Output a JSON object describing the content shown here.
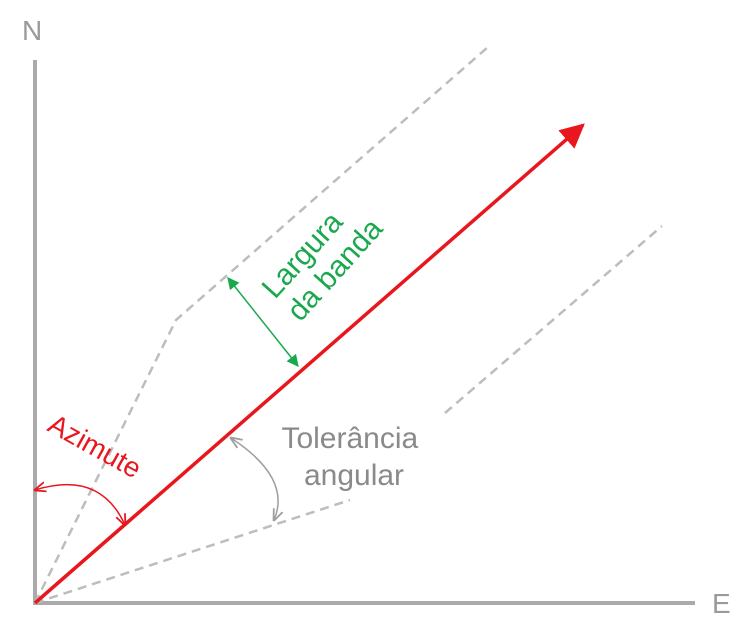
{
  "axes": {
    "north_label": "N",
    "east_label": "E"
  },
  "labels": {
    "band_width_line1": "Largura",
    "band_width_line2": "da banda",
    "angular_tolerance_line1": "Tolerância",
    "angular_tolerance_line2": "angular",
    "azimuth": "Azimute"
  },
  "colors": {
    "axis": "#aaaaaa",
    "azimuth_vector": "#e8161d",
    "band_width": "#1aa84f",
    "tolerance": "#bdbdbd",
    "tolerance_arc": "#9e9e9e",
    "text_gray": "#8a8a8a"
  }
}
